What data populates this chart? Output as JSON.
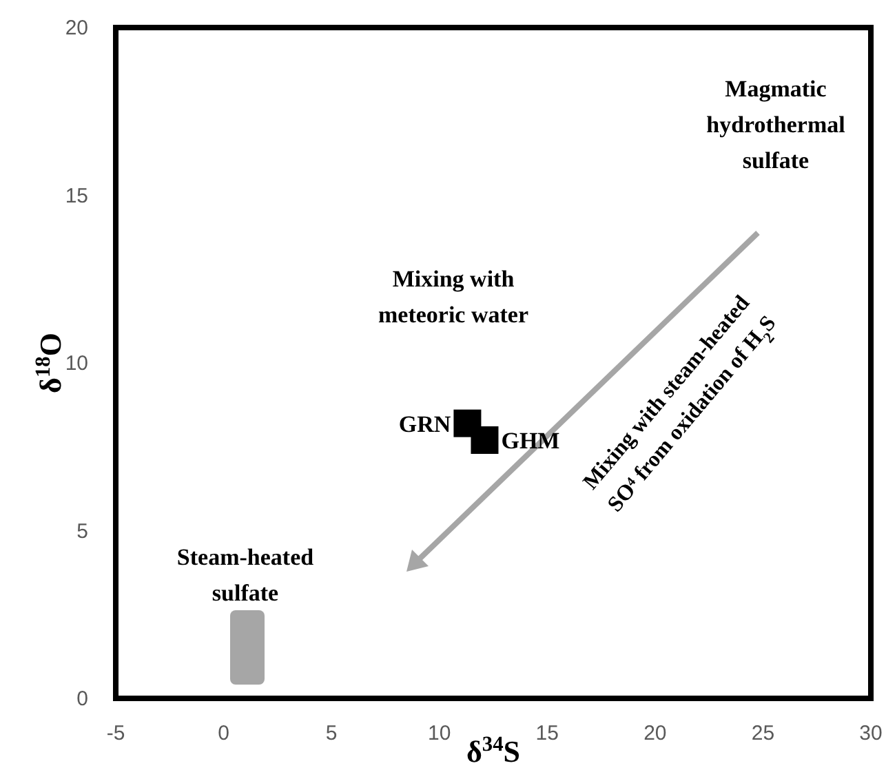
{
  "chart_data": {
    "type": "scatter",
    "xlabel": "δ$^{34}$S",
    "ylabel": "δ$^{18}$O",
    "xlim": [
      -5,
      30
    ],
    "xticks": [
      -5,
      0,
      5,
      10,
      15,
      20,
      25,
      30
    ],
    "ylim": [
      0,
      20
    ],
    "yticks": [
      0,
      5,
      10,
      15,
      20
    ],
    "grid": false,
    "marker": "square",
    "series": [
      {
        "name": "GRN",
        "color": "#000000",
        "x": [
          11.3
        ],
        "values": [
          8.2
        ]
      },
      {
        "name": "GHM",
        "color": "#000000",
        "x": [
          12.1
        ],
        "values": [
          7.7
        ]
      }
    ],
    "annotations": [
      "Magmatic\nhydrothermal\nsulfate",
      "Mixing with\nmeteoric water",
      "Steam-heated\nsulfate",
      "Mixing with steam-heated\nSO⁴ from oxidation of H$_{2}$S"
    ]
  }
}
